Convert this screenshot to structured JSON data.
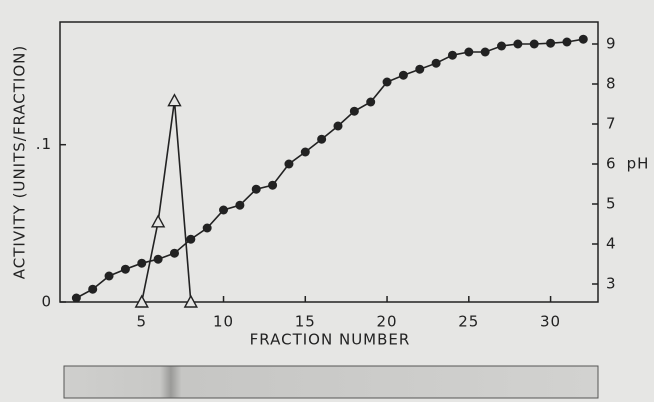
{
  "chart_data": {
    "type": "line",
    "x_label": "FRACTION NUMBER",
    "y_label": "ACTIVITY (UNITS/FRACTION)",
    "y2_label": "pH",
    "x": [
      1,
      2,
      3,
      4,
      5,
      6,
      7,
      8,
      9,
      10,
      11,
      12,
      13,
      14,
      15,
      16,
      17,
      18,
      19,
      20,
      21,
      22,
      23,
      24,
      25,
      26,
      27,
      28,
      29,
      30,
      31,
      32
    ],
    "xlim": [
      0,
      32.9
    ],
    "xticks": [
      5,
      10,
      15,
      20,
      25,
      30
    ],
    "ylim": [
      0,
      0.178
    ],
    "yticks": [
      0,
      {
        "value": 0.1,
        "label": ".1"
      }
    ],
    "y2lim": [
      2.55,
      9.55
    ],
    "y2ticks": [
      3,
      4,
      5,
      6,
      7,
      8,
      9
    ],
    "series": [
      {
        "color": "#222222",
        "marker": "triangle",
        "axis": "y",
        "values": [
          null,
          null,
          null,
          null,
          0,
          0.051,
          0.128,
          0,
          null,
          null,
          null,
          null,
          null,
          null,
          null,
          null,
          null,
          null,
          null,
          null,
          null,
          null,
          null,
          null,
          null,
          null,
          null,
          null,
          null,
          null,
          null,
          null
        ]
      },
      {
        "color": "#222222",
        "marker": "circle",
        "axis": "y2",
        "values": [
          2.65,
          2.87,
          3.2,
          3.37,
          3.52,
          3.62,
          3.77,
          4.12,
          4.4,
          4.85,
          4.97,
          5.37,
          5.47,
          6.0,
          6.3,
          6.62,
          6.95,
          7.32,
          7.55,
          8.05,
          8.22,
          8.37,
          8.52,
          8.72,
          8.8,
          8.8,
          8.95,
          9.0,
          9.0,
          9.02,
          9.05,
          9.12
        ]
      }
    ]
  }
}
